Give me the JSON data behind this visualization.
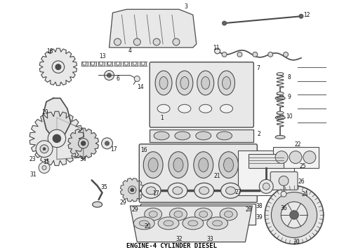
{
  "title": "ENGINE-4 CYLINDER DIESEL",
  "title_fontsize": 6.5,
  "title_color": "#000000",
  "background_color": "#ffffff",
  "fg": "#4a4a4a",
  "fg2": "#666666",
  "fg3": "#888888",
  "face": "#e8e8e8",
  "face2": "#d8d8d8",
  "face3": "#f2f2f2"
}
